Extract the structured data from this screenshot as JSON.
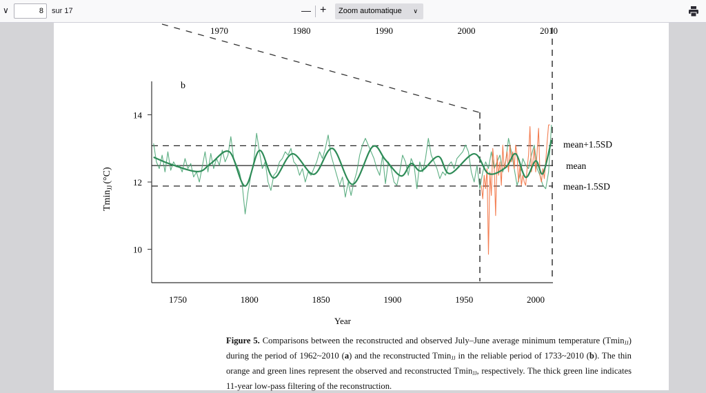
{
  "toolbar": {
    "sidebar_toggle_icon": "chevron-down-icon",
    "page_number": "8",
    "page_total_label": "sur 17",
    "zoom_out_label": "—",
    "zoom_in_label": "+",
    "zoom_select_value": "Zoom automatique",
    "print_icon": "printer-icon"
  },
  "panel_a": {
    "x_tick_labels": [
      "1970",
      "1980",
      "1990",
      "2000",
      "2010"
    ],
    "x_ticks": [
      1970,
      1980,
      1990,
      2000,
      2010
    ]
  },
  "chart_data": {
    "type": "line",
    "panel_label": "b",
    "xlabel": "Year",
    "ylabel_main": "Tmin",
    "ylabel_sub": "JJ",
    "ylabel_unit": "(°C)",
    "xlim": [
      1733,
      2011
    ],
    "ylim": [
      9,
      15
    ],
    "x_ticks": [
      1750,
      1800,
      1850,
      1900,
      1950,
      2000
    ],
    "x_tick_labels": [
      "1750",
      "1800",
      "1850",
      "1900",
      "1950",
      "2000"
    ],
    "y_ticks": [
      10,
      12,
      14
    ],
    "y_tick_labels": [
      "10",
      "12",
      "14"
    ],
    "reference_lines": [
      {
        "label": "mean+1.5SD",
        "value": 13.08,
        "style": "dashed"
      },
      {
        "label": "mean",
        "value": 12.49,
        "style": "solid"
      },
      {
        "label": "mean-1.5SD",
        "value": 11.88,
        "style": "dashed"
      }
    ],
    "vertical_markers": [
      1962,
      2010
    ],
    "series": [
      {
        "name": "Reconstructed Tmin (thin green)",
        "color": "#4aa574",
        "start": 1733,
        "step": 2,
        "values": [
          13.15,
          12.6,
          12.4,
          12.8,
          12.3,
          12.9,
          12.35,
          12.6,
          12.45,
          12.5,
          12.3,
          12.7,
          12.4,
          12.55,
          12.15,
          12.3,
          12.0,
          12.45,
          12.9,
          12.3,
          12.85,
          12.4,
          12.7,
          12.5,
          12.95,
          12.6,
          12.8,
          13.35,
          12.7,
          12.5,
          12.3,
          11.9,
          11.05,
          11.7,
          12.2,
          12.6,
          13.45,
          12.9,
          12.4,
          12.6,
          12.0,
          11.75,
          12.2,
          12.3,
          12.6,
          12.7,
          12.9,
          12.8,
          13.0,
          12.6,
          12.5,
          12.2,
          12.4,
          12.0,
          12.3,
          12.2,
          12.4,
          12.6,
          12.9,
          12.7,
          13.0,
          13.4,
          12.8,
          12.5,
          12.2,
          11.9,
          12.15,
          11.55,
          12.0,
          11.6,
          12.0,
          12.3,
          12.8,
          13.1,
          13.3,
          13.1,
          12.9,
          12.7,
          12.4,
          12.2,
          12.8,
          11.95,
          12.6,
          12.4,
          12.0,
          11.9,
          12.3,
          12.8,
          12.6,
          12.2,
          12.7,
          12.5,
          11.8,
          12.6,
          12.3,
          12.7,
          13.3,
          12.8,
          12.6,
          12.4,
          12.1,
          12.3,
          12.2,
          12.5,
          12.6,
          12.4,
          12.7,
          12.8,
          12.9,
          13.1,
          12.9,
          12.3,
          12.0,
          12.5,
          11.8,
          12.3,
          12.6,
          12.4,
          12.9,
          12.4,
          12.6,
          12.8,
          12.3,
          12.6,
          13.3,
          12.9,
          12.4,
          11.9,
          12.2,
          12.7,
          12.5,
          12.4,
          12.8,
          13.1,
          12.4,
          12.2,
          11.9,
          11.8,
          12.3,
          13.7
        ]
      },
      {
        "name": "Observed Tmin (thin orange)",
        "color": "#f2703f",
        "start": 1962,
        "step": 1,
        "values": [
          11.9,
          11.5,
          12.2,
          11.8,
          12.4,
          9.85,
          12.3,
          11.6,
          13.0,
          12.5,
          11.0,
          12.8,
          12.2,
          12.6,
          11.9,
          13.1,
          12.4,
          12.6,
          12.9,
          12.3,
          13.1,
          12.6,
          12.9,
          12.4,
          13.1,
          12.8,
          12.0,
          12.5,
          11.9,
          12.2,
          12.0,
          11.9,
          12.4,
          12.8,
          13.65,
          12.3,
          12.6,
          13.0,
          12.3,
          12.9,
          13.6,
          12.2,
          12.0,
          12.4,
          12.1,
          12.6,
          13.2,
          13.7,
          13.7
        ]
      },
      {
        "name": "11-year low-pass filtered reconstruction (thick green)",
        "color": "#2e8b57",
        "points": [
          [
            1733,
            12.74
          ],
          [
            1745,
            12.53
          ],
          [
            1764,
            12.31
          ],
          [
            1773,
            12.55
          ],
          [
            1786,
            12.9
          ],
          [
            1797,
            11.88
          ],
          [
            1807,
            12.94
          ],
          [
            1817,
            12.12
          ],
          [
            1830,
            12.84
          ],
          [
            1845,
            12.23
          ],
          [
            1858,
            13.0
          ],
          [
            1872,
            11.93
          ],
          [
            1886,
            13.05
          ],
          [
            1895,
            12.66
          ],
          [
            1906,
            12.18
          ],
          [
            1913,
            12.55
          ],
          [
            1920,
            12.33
          ],
          [
            1932,
            12.76
          ],
          [
            1940,
            12.25
          ],
          [
            1957,
            12.84
          ],
          [
            1967,
            12.25
          ],
          [
            1979,
            12.43
          ],
          [
            1986,
            12.84
          ],
          [
            1993,
            12.14
          ],
          [
            2000,
            12.63
          ],
          [
            2005,
            12.25
          ],
          [
            2011,
            13.25
          ]
        ]
      }
    ]
  },
  "caption": {
    "figure_label": "Figure 5.",
    "p1": " Comparisons between the reconstructed and observed July–June average minimum temperature (Tmin",
    "sub1": "JJ",
    "p2": ") during the period of 1962~2010 (",
    "a": "a",
    "p3": ") and the reconstructed Tmin",
    "sub2": "JJ",
    "p4": " in the reliable period of 1733~2010 (",
    "b": "b",
    "p5": "). The thin orange and green lines represent the observed and reconstructed Tmin",
    "sub3": "JJ",
    "p6": ", respectively. The thick green line indicates 11-year low-pass filtering of the reconstruction."
  }
}
